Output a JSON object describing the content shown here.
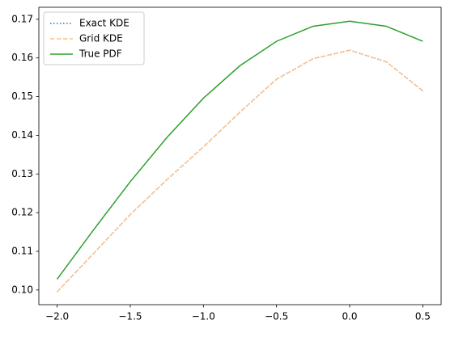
{
  "chart_data": {
    "type": "line",
    "x": [
      -2,
      -1.75,
      -1.5,
      -1.25,
      -1,
      -0.75,
      -0.5,
      -0.25,
      0,
      0.25,
      0.5
    ],
    "series": [
      {
        "name": "Exact KDE",
        "color": "#1f77b4",
        "style": "dotted",
        "values": [
          0.0995,
          0.1095,
          0.1195,
          0.1285,
          0.137,
          0.146,
          0.1545,
          0.1598,
          0.162,
          0.159,
          0.1515
        ]
      },
      {
        "name": "Grid KDE",
        "color": "#ffbf86",
        "style": "dashed",
        "values": [
          0.0995,
          0.1095,
          0.1195,
          0.1285,
          0.137,
          0.146,
          0.1545,
          0.1598,
          0.162,
          0.159,
          0.1515
        ]
      },
      {
        "name": "True PDF",
        "color": "#2ca02c",
        "style": "solid",
        "values": [
          0.1028,
          0.1156,
          0.128,
          0.1394,
          0.1496,
          0.158,
          0.1643,
          0.1682,
          0.1695,
          0.1682,
          0.1643
        ]
      }
    ],
    "xlim": [
      -2.125,
      0.625
    ],
    "ylim": [
      0.0962,
      0.1731
    ],
    "xticks": [
      {
        "value": -2,
        "label": "−2.0"
      },
      {
        "value": -1.5,
        "label": "−1.5"
      },
      {
        "value": -1,
        "label": "−1.0"
      },
      {
        "value": -0.5,
        "label": "−0.5"
      },
      {
        "value": 0,
        "label": "0.0"
      },
      {
        "value": 0.5,
        "label": "0.5"
      }
    ],
    "yticks": [
      {
        "value": 0.1,
        "label": "0.10"
      },
      0.11,
      0.12,
      0.13,
      0.14,
      0.15,
      0.16,
      0.17
    ],
    "legend": "upper left",
    "grid": false
  }
}
